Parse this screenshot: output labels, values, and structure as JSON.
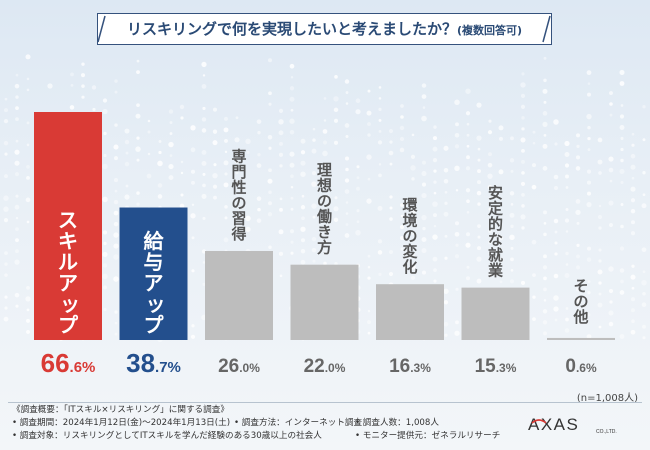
{
  "title": {
    "main": "リスキリングで何を実現したいと考えましたか？",
    "sub": "(複数回答可)"
  },
  "chart_data": {
    "type": "bar",
    "categories": [
      "スキルアップ",
      "給与アップ",
      "専門性の習得",
      "理想の働き方",
      "環境の変化",
      "安定的な就業",
      "その他"
    ],
    "values": [
      66.6,
      38.7,
      26.0,
      22.0,
      16.3,
      15.3,
      0.6
    ],
    "value_labels": [
      {
        "int": "66",
        "dec": ".6%"
      },
      {
        "int": "38",
        "dec": ".7%"
      },
      {
        "int": "26",
        "dec": ".0%"
      },
      {
        "int": "22",
        "dec": ".0%"
      },
      {
        "int": "16",
        "dec": ".3%"
      },
      {
        "int": "15",
        "dec": ".3%"
      },
      {
        "int": "0",
        "dec": ".6%"
      }
    ],
    "colors": [
      "#d93a35",
      "#234f8d",
      "#bdbdbd",
      "#bdbdbd",
      "#bdbdbd",
      "#bdbdbd",
      "#bdbdbd"
    ],
    "label_colors": [
      "#d93a35",
      "#234f8d",
      "#666666",
      "#666666",
      "#666666",
      "#666666",
      "#666666"
    ],
    "ylim": [
      0,
      70
    ],
    "title": "リスキリングで何を実現したいと考えましたか？(複数回答可)",
    "xlabel": "",
    "ylabel": ""
  },
  "sample_size": "(n=1,008人)",
  "notes": {
    "heading": "《調査概要：「ITスキル×リスキリング」に関する調査》",
    "period": "• 調査期間：2024年1月12日(金)～2024年1月13日(土)",
    "method": "• 調査方法：インターネット調査",
    "count": "• 調査人数：1,008人",
    "target": "• 調査対象：リスキリングとしてITスキルを学んだ経験のある30歳以上の社会人",
    "provider": "• モニター提供元：ゼネラルリサーチ"
  },
  "logo": {
    "name": "AXAS",
    "suffix": "CO.,LTD."
  },
  "colors": {
    "title": "#2a4a75",
    "accent_red": "#d93a35",
    "accent_blue": "#234f8d",
    "gray_bar": "#bdbdbd"
  }
}
